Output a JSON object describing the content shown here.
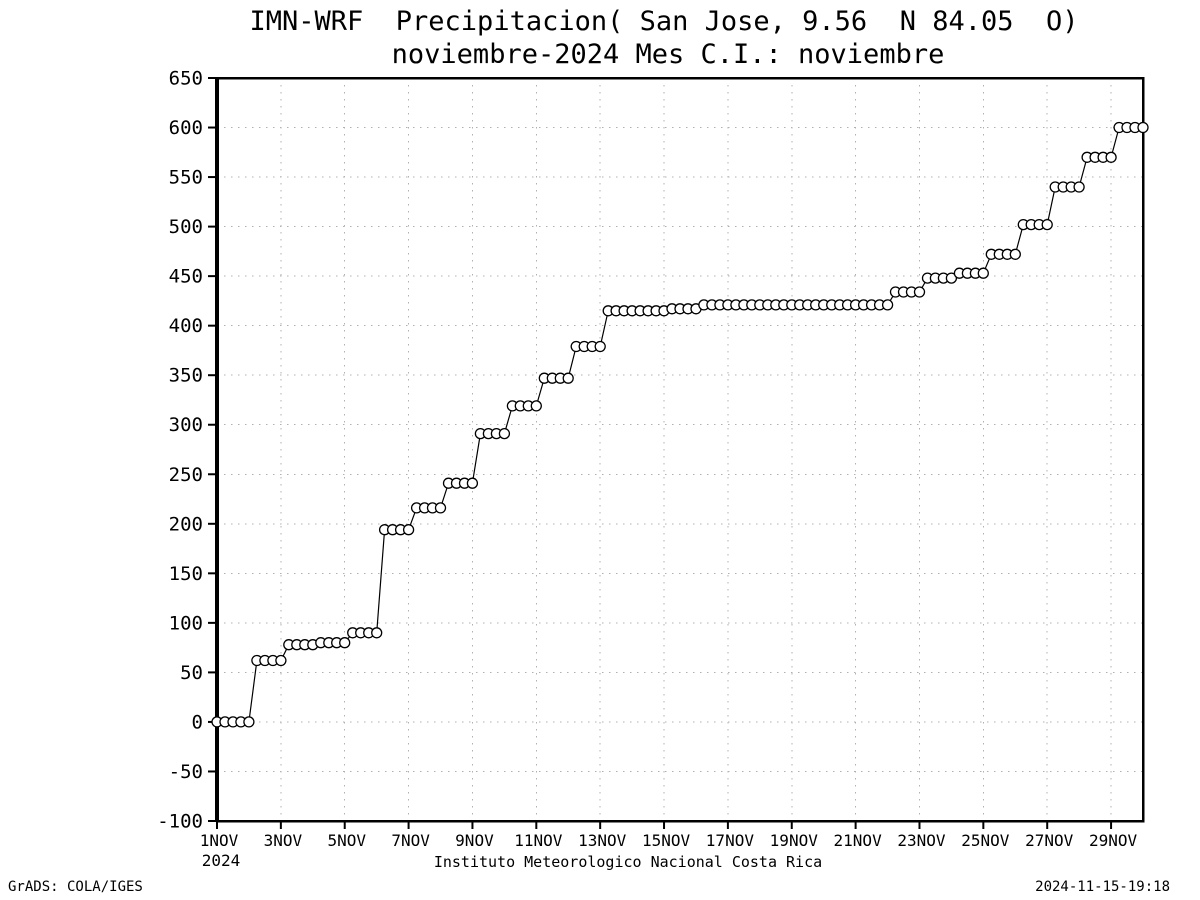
{
  "title": {
    "line1": "IMN-WRF  Precipitacion( San Jose, 9.56  N 84.05  O)",
    "line2": "noviembre-2024 Mes C.I.: noviembre"
  },
  "chart": {
    "x_axis_title": "Instituto Meteorologico Nacional Costa Rica",
    "y_ticks": [
      650,
      600,
      550,
      500,
      450,
      400,
      350,
      300,
      250,
      200,
      150,
      100,
      50,
      0,
      -50,
      -100
    ],
    "x_ticks": [
      {
        "day": 1,
        "label": "1NOV",
        "sublabel": "2024"
      },
      {
        "day": 3,
        "label": "3NOV"
      },
      {
        "day": 5,
        "label": "5NOV"
      },
      {
        "day": 7,
        "label": "7NOV"
      },
      {
        "day": 9,
        "label": "9NOV"
      },
      {
        "day": 11,
        "label": "11NOV"
      },
      {
        "day": 13,
        "label": "13NOV"
      },
      {
        "day": 15,
        "label": "15NOV"
      },
      {
        "day": 17,
        "label": "17NOV"
      },
      {
        "day": 19,
        "label": "19NOV"
      },
      {
        "day": 21,
        "label": "21NOV"
      },
      {
        "day": 23,
        "label": "23NOV"
      },
      {
        "day": 25,
        "label": "25NOV"
      },
      {
        "day": 27,
        "label": "27NOV"
      },
      {
        "day": 29,
        "label": "29NOV"
      }
    ]
  },
  "chart_data": {
    "type": "line",
    "title": "IMN-WRF Precipitacion( San Jose, 9.56 N 84.05 O) noviembre-2024 Mes C.I.: noviembre",
    "xlabel": "Instituto Meteorologico Nacional Costa Rica",
    "ylabel": "",
    "x_unit": "date (November 2024)",
    "y_unit": "accumulated precipitation (mm)",
    "x_domain_days": [
      1,
      30
    ],
    "ylim": [
      -100,
      650
    ],
    "grid": "dotted",
    "legend": "none",
    "marker": "open-circle",
    "line_color": "#000000",
    "sample_interval_days": 0.25,
    "step_segments": [
      {
        "start_day": 1.0,
        "end_day": 2.0,
        "value": 0
      },
      {
        "start_day": 2.25,
        "end_day": 3.0,
        "value": 62
      },
      {
        "start_day": 3.25,
        "end_day": 4.0,
        "value": 78
      },
      {
        "start_day": 4.25,
        "end_day": 5.0,
        "value": 80
      },
      {
        "start_day": 5.25,
        "end_day": 6.0,
        "value": 90
      },
      {
        "start_day": 6.25,
        "end_day": 7.0,
        "value": 194
      },
      {
        "start_day": 7.25,
        "end_day": 8.0,
        "value": 216
      },
      {
        "start_day": 8.25,
        "end_day": 9.0,
        "value": 241
      },
      {
        "start_day": 9.25,
        "end_day": 10.0,
        "value": 291
      },
      {
        "start_day": 10.25,
        "end_day": 11.0,
        "value": 319
      },
      {
        "start_day": 11.25,
        "end_day": 12.0,
        "value": 347
      },
      {
        "start_day": 12.25,
        "end_day": 13.0,
        "value": 379
      },
      {
        "start_day": 13.25,
        "end_day": 15.0,
        "value": 415
      },
      {
        "start_day": 15.25,
        "end_day": 16.0,
        "value": 417
      },
      {
        "start_day": 16.25,
        "end_day": 22.0,
        "value": 421
      },
      {
        "start_day": 22.25,
        "end_day": 23.0,
        "value": 434
      },
      {
        "start_day": 23.25,
        "end_day": 24.0,
        "value": 448
      },
      {
        "start_day": 24.25,
        "end_day": 25.0,
        "value": 453
      },
      {
        "start_day": 25.25,
        "end_day": 26.0,
        "value": 472
      },
      {
        "start_day": 26.25,
        "end_day": 27.0,
        "value": 502
      },
      {
        "start_day": 27.25,
        "end_day": 28.0,
        "value": 540
      },
      {
        "start_day": 28.25,
        "end_day": 29.0,
        "value": 570
      },
      {
        "start_day": 29.25,
        "end_day": 30.0,
        "value": 600
      }
    ]
  },
  "footer": {
    "left": "GrADS: COLA/IGES",
    "right": "2024-11-15-19:18"
  },
  "colors": {
    "background": "#ffffff",
    "foreground": "#000000",
    "grid": "#b0b0b0"
  }
}
